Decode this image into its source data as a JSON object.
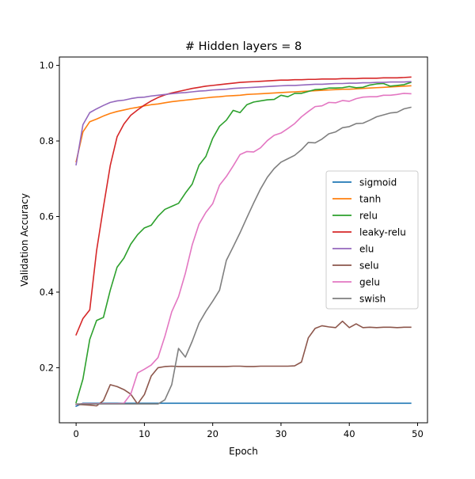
{
  "chart_data": {
    "type": "line",
    "title": "# Hidden layers = 8",
    "xlabel": "Epoch",
    "ylabel": "Validation Accuracy",
    "xlim": [
      -2.45,
      51.45
    ],
    "ylim": [
      0.0542,
      1.0222
    ],
    "xticks": [
      0,
      10,
      20,
      30,
      40,
      50
    ],
    "yticks": [
      0.2,
      0.4,
      0.6,
      0.8,
      1.0
    ],
    "xtick_labels": [
      "0",
      "10",
      "20",
      "30",
      "40",
      "50"
    ],
    "ytick_labels": [
      "0.2",
      "0.4",
      "0.6",
      "0.8",
      "1.0"
    ],
    "grid": false,
    "legend_position": "center right",
    "series": [
      {
        "name": "sigmoid",
        "color": "#1f77b4",
        "values": [
          0.098,
          0.106,
          0.106,
          0.106,
          0.106,
          0.106,
          0.106,
          0.106,
          0.106,
          0.106,
          0.106,
          0.106,
          0.106,
          0.106,
          0.106,
          0.106,
          0.106,
          0.106,
          0.106,
          0.106,
          0.106,
          0.106,
          0.106,
          0.106,
          0.106,
          0.106,
          0.106,
          0.106,
          0.106,
          0.106,
          0.106,
          0.106,
          0.106,
          0.106,
          0.106,
          0.106,
          0.106,
          0.106,
          0.106,
          0.106,
          0.106,
          0.106,
          0.106,
          0.106,
          0.106,
          0.106,
          0.106,
          0.106,
          0.106,
          0.106
        ]
      },
      {
        "name": "tanh",
        "color": "#ff7f0e",
        "values": [
          0.745,
          0.824,
          0.851,
          0.858,
          0.866,
          0.873,
          0.878,
          0.882,
          0.886,
          0.889,
          0.893,
          0.896,
          0.898,
          0.901,
          0.904,
          0.906,
          0.908,
          0.91,
          0.912,
          0.914,
          0.916,
          0.917,
          0.919,
          0.92,
          0.921,
          0.923,
          0.924,
          0.925,
          0.926,
          0.927,
          0.928,
          0.929,
          0.93,
          0.931,
          0.932,
          0.933,
          0.934,
          0.935,
          0.936,
          0.937,
          0.937,
          0.938,
          0.939,
          0.94,
          0.941,
          0.942,
          0.943,
          0.944,
          0.945,
          0.946
        ]
      },
      {
        "name": "relu",
        "color": "#2ca02c",
        "values": [
          0.108,
          0.17,
          0.275,
          0.325,
          0.333,
          0.405,
          0.466,
          0.49,
          0.527,
          0.552,
          0.57,
          0.577,
          0.601,
          0.619,
          0.627,
          0.635,
          0.662,
          0.686,
          0.736,
          0.759,
          0.807,
          0.839,
          0.855,
          0.881,
          0.875,
          0.896,
          0.903,
          0.906,
          0.909,
          0.91,
          0.921,
          0.917,
          0.926,
          0.926,
          0.931,
          0.936,
          0.937,
          0.94,
          0.94,
          0.941,
          0.944,
          0.941,
          0.942,
          0.948,
          0.951,
          0.952,
          0.945,
          0.947,
          0.949,
          0.955
        ]
      },
      {
        "name": "leaky-relu",
        "color": "#d62728",
        "values": [
          0.287,
          0.33,
          0.353,
          0.51,
          0.625,
          0.735,
          0.811,
          0.845,
          0.868,
          0.882,
          0.895,
          0.906,
          0.915,
          0.922,
          0.927,
          0.931,
          0.935,
          0.939,
          0.942,
          0.945,
          0.947,
          0.949,
          0.951,
          0.953,
          0.955,
          0.956,
          0.957,
          0.958,
          0.959,
          0.96,
          0.961,
          0.961,
          0.962,
          0.962,
          0.963,
          0.963,
          0.964,
          0.964,
          0.964,
          0.965,
          0.965,
          0.965,
          0.966,
          0.966,
          0.966,
          0.967,
          0.967,
          0.967,
          0.968,
          0.969
        ]
      },
      {
        "name": "elu",
        "color": "#9467bd",
        "values": [
          0.737,
          0.843,
          0.875,
          0.885,
          0.894,
          0.902,
          0.906,
          0.908,
          0.912,
          0.915,
          0.916,
          0.919,
          0.921,
          0.923,
          0.925,
          0.927,
          0.928,
          0.93,
          0.932,
          0.933,
          0.935,
          0.936,
          0.937,
          0.939,
          0.94,
          0.941,
          0.942,
          0.943,
          0.944,
          0.945,
          0.946,
          0.947,
          0.947,
          0.948,
          0.949,
          0.95,
          0.95,
          0.951,
          0.952,
          0.952,
          0.953,
          0.953,
          0.954,
          0.954,
          0.955,
          0.955,
          0.956,
          0.956,
          0.956,
          0.957
        ]
      },
      {
        "name": "selu",
        "color": "#8c564b",
        "values": [
          0.103,
          0.102,
          0.101,
          0.099,
          0.113,
          0.155,
          0.15,
          0.142,
          0.13,
          0.104,
          0.129,
          0.178,
          0.2,
          0.203,
          0.204,
          0.203,
          0.203,
          0.203,
          0.203,
          0.203,
          0.203,
          0.203,
          0.203,
          0.204,
          0.204,
          0.203,
          0.203,
          0.204,
          0.204,
          0.204,
          0.204,
          0.204,
          0.205,
          0.215,
          0.279,
          0.304,
          0.311,
          0.308,
          0.306,
          0.323,
          0.306,
          0.316,
          0.306,
          0.307,
          0.306,
          0.307,
          0.307,
          0.306,
          0.307,
          0.307
        ]
      },
      {
        "name": "gelu",
        "color": "#e377c2",
        "values": [
          0.103,
          0.105,
          0.105,
          0.105,
          0.105,
          0.105,
          0.105,
          0.106,
          0.13,
          0.186,
          0.196,
          0.207,
          0.227,
          0.283,
          0.348,
          0.388,
          0.45,
          0.525,
          0.58,
          0.611,
          0.634,
          0.683,
          0.706,
          0.734,
          0.764,
          0.772,
          0.771,
          0.782,
          0.801,
          0.815,
          0.821,
          0.833,
          0.846,
          0.864,
          0.878,
          0.891,
          0.893,
          0.902,
          0.901,
          0.907,
          0.905,
          0.912,
          0.916,
          0.917,
          0.917,
          0.921,
          0.921,
          0.923,
          0.926,
          0.925
        ]
      },
      {
        "name": "swish",
        "color": "#7f7f7f",
        "values": [
          0.104,
          0.104,
          0.104,
          0.104,
          0.104,
          0.104,
          0.104,
          0.104,
          0.104,
          0.104,
          0.104,
          0.104,
          0.104,
          0.115,
          0.155,
          0.251,
          0.228,
          0.27,
          0.318,
          0.349,
          0.376,
          0.405,
          0.484,
          0.52,
          0.557,
          0.597,
          0.636,
          0.673,
          0.704,
          0.727,
          0.744,
          0.753,
          0.762,
          0.777,
          0.796,
          0.795,
          0.805,
          0.819,
          0.824,
          0.835,
          0.838,
          0.846,
          0.847,
          0.855,
          0.864,
          0.869,
          0.874,
          0.876,
          0.885,
          0.889
        ]
      }
    ]
  }
}
